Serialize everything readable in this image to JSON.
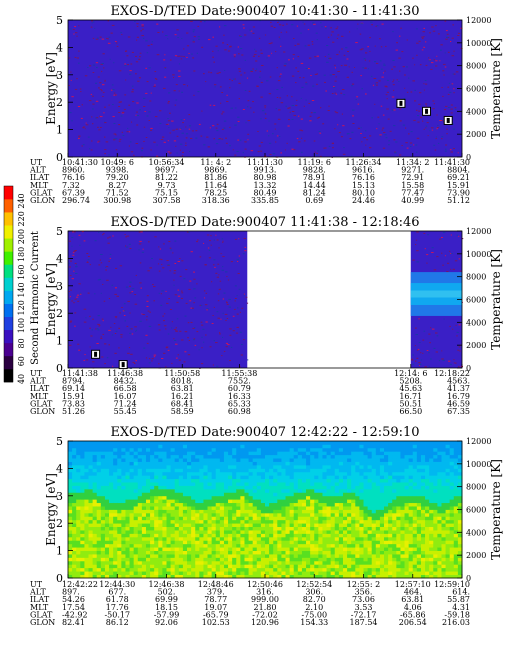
{
  "colorbar": {
    "label": "Second Harmonic Current",
    "ticks": [
      "40",
      "60",
      "80",
      "100",
      "120",
      "140",
      "160",
      "180",
      "200",
      "220",
      "240"
    ],
    "colors": [
      "#000000",
      "#2a0040",
      "#4a0090",
      "#3a10c0",
      "#2040e0",
      "#0070f0",
      "#00a8f0",
      "#00d0d0",
      "#00e080",
      "#40f000",
      "#a0f000",
      "#f0f000",
      "#ffc000",
      "#ff6000",
      "#ff0000"
    ]
  },
  "chart_data": [
    {
      "type": "heatmap",
      "title": "EXOS-D/TED   Date:900407   10:41:30 - 11:41:30",
      "ylabel": "Energy [eV]",
      "y2label": "Temperature [K]",
      "ylim": [
        0,
        5
      ],
      "y2lim": [
        0,
        12000
      ],
      "yticks": [
        "0",
        "1",
        "2",
        "3",
        "4",
        "5"
      ],
      "y2ticks": [
        "0",
        "2000",
        "4000",
        "6000",
        "8000",
        "10000",
        "12000"
      ],
      "background": "#3a1fc6",
      "segments": [],
      "temperature_points": [
        {
          "t": 0.845,
          "v": 4700
        },
        {
          "t": 0.91,
          "v": 4000
        },
        {
          "t": 0.965,
          "v": 3200
        }
      ],
      "row_labels": [
        "UT",
        "ALT",
        "ILAT",
        "MLT",
        "GLAT",
        "GLON"
      ],
      "columns": [
        {
          "pos": 0.0,
          "values": [
            "10:41:30",
            "8960.",
            "76.16",
            "7.32",
            "67.39",
            "296.74"
          ]
        },
        {
          "pos": 0.125,
          "values": [
            "10:49: 6",
            "9398.",
            "79.20",
            "8.27",
            "71.52",
            "300.98"
          ]
        },
        {
          "pos": 0.25,
          "values": [
            "10:56:34",
            "9697.",
            "81.22",
            "9.73",
            "75.15",
            "307.58"
          ]
        },
        {
          "pos": 0.375,
          "values": [
            "11: 4: 2",
            "9869.",
            "81.86",
            "11.64",
            "78.25",
            "318.36"
          ]
        },
        {
          "pos": 0.5,
          "values": [
            "11:11:30",
            "9913.",
            "80.98",
            "13.32",
            "80.49",
            "335.85"
          ]
        },
        {
          "pos": 0.625,
          "values": [
            "11:19: 6",
            "9828.",
            "78.91",
            "14.44",
            "81.24",
            "0.69"
          ]
        },
        {
          "pos": 0.75,
          "values": [
            "11:26:34",
            "9616.",
            "76.16",
            "15.13",
            "80.10",
            "24.46"
          ]
        },
        {
          "pos": 0.875,
          "values": [
            "11:34: 2",
            "9271.",
            "72.91",
            "15.58",
            "77.47",
            "40.99"
          ]
        },
        {
          "pos": 1.0,
          "values": [
            "11:41:30",
            "8804.",
            "69.21",
            "15.91",
            "73.90",
            "51.12"
          ]
        }
      ]
    },
    {
      "type": "heatmap",
      "title": "EXOS-D/TED   Date:900407   11:41:38 - 12:18:46",
      "ylabel": "Energy [eV]",
      "y2label": "Temperature [K]",
      "ylim": [
        0,
        5
      ],
      "y2lim": [
        0,
        12000
      ],
      "yticks": [
        "0",
        "1",
        "2",
        "3",
        "4",
        "5"
      ],
      "y2ticks": [
        "0",
        "2000",
        "4000",
        "6000",
        "8000",
        "10000",
        "12000"
      ],
      "background": "#3a1fc6",
      "segments": [
        {
          "t0": 0.0,
          "t1": 0.455
        },
        {
          "t0": 0.87,
          "t1": 1.0
        }
      ],
      "band": {
        "t0": 0.87,
        "t1": 1.0,
        "e0": 1.9,
        "e1": 3.5
      },
      "temperature_points": [
        {
          "t": 0.07,
          "v": 1200
        },
        {
          "t": 0.14,
          "v": 300
        }
      ],
      "row_labels": [
        "UT",
        "ALT",
        "ILAT",
        "MLT",
        "GLAT",
        "GLON"
      ],
      "columns": [
        {
          "pos": 0.0,
          "values": [
            "11:41:38",
            "8794.",
            "69.14",
            "15.91",
            "73.83",
            "51.26"
          ]
        },
        {
          "pos": 0.145,
          "values": [
            "11:46:38",
            "8432.",
            "66.58",
            "16.07",
            "71.24",
            "55.45"
          ]
        },
        {
          "pos": 0.29,
          "values": [
            "11:50:58",
            "8018.",
            "63.81",
            "16.21",
            "68.41",
            "58.59"
          ]
        },
        {
          "pos": 0.435,
          "values": [
            "11:55:38",
            "7552.",
            "60.79",
            "16.33",
            "65.33",
            "60.98"
          ]
        },
        {
          "pos": 0.87,
          "values": [
            "12:14: 6",
            "5208.",
            "45.63",
            "16.71",
            "50.51",
            "66.50"
          ]
        },
        {
          "pos": 1.0,
          "values": [
            "12:18:22",
            "4563.",
            "41.37",
            "16.79",
            "46.59",
            "67.35"
          ]
        }
      ]
    },
    {
      "type": "heatmap",
      "title": "EXOS-D/TED   Date:900407   12:42:22 - 12:59:10",
      "ylabel": "Energy [eV]",
      "y2label": "Temperature [K]",
      "ylim": [
        0,
        5
      ],
      "y2lim": [
        0,
        12000
      ],
      "yticks": [
        "0",
        "1",
        "2",
        "3",
        "4",
        "5"
      ],
      "y2ticks": [
        "0",
        "2000",
        "4000",
        "6000",
        "8000",
        "10000",
        "12000"
      ],
      "background": "spectrogram",
      "segments": [
        {
          "t0": 0.0,
          "t1": 1.0
        }
      ],
      "boundary_ev": [
        2.9,
        3.1,
        2.6,
        2.7,
        3.2,
        3.0,
        2.6,
        2.9,
        3.1,
        2.5,
        2.8,
        3.1,
        2.8,
        3.0,
        2.2,
        2.8,
        2.9,
        2.5,
        2.9
      ],
      "temperature_points": [],
      "row_labels": [
        "UT",
        "ALT",
        "ILAT",
        "MLT",
        "GLAT",
        "GLON"
      ],
      "columns": [
        {
          "pos": 0.0,
          "values": [
            "12:42:22",
            "897.",
            "54.26",
            "17.54",
            "-42.92",
            "82.41"
          ]
        },
        {
          "pos": 0.125,
          "values": [
            "12:44:30",
            "677.",
            "61.78",
            "17.76",
            "-50.17",
            "86.12"
          ]
        },
        {
          "pos": 0.25,
          "values": [
            "12:46:38",
            "502.",
            "69.99",
            "18.15",
            "-57.99",
            "92.06"
          ]
        },
        {
          "pos": 0.375,
          "values": [
            "12:48:46",
            "379.",
            "78.77",
            "19.07",
            "-65.79",
            "102.53"
          ]
        },
        {
          "pos": 0.5,
          "values": [
            "12:50:46",
            "316.",
            "999.00",
            "21.80",
            "-72.02",
            "120.96"
          ]
        },
        {
          "pos": 0.625,
          "values": [
            "12:52:54",
            "306.",
            "82.70",
            "2.10",
            "-75.00",
            "154.33"
          ]
        },
        {
          "pos": 0.75,
          "values": [
            "12:55: 2",
            "356.",
            "73.06",
            "3.53",
            "-72.17",
            "187.54"
          ]
        },
        {
          "pos": 0.875,
          "values": [
            "12:57:10",
            "464.",
            "63.81",
            "4.06",
            "-65.86",
            "206.54"
          ]
        },
        {
          "pos": 1.0,
          "values": [
            "12:59:10",
            "614.",
            "55.87",
            "4.31",
            "-59.18",
            "216.03"
          ]
        }
      ]
    }
  ]
}
